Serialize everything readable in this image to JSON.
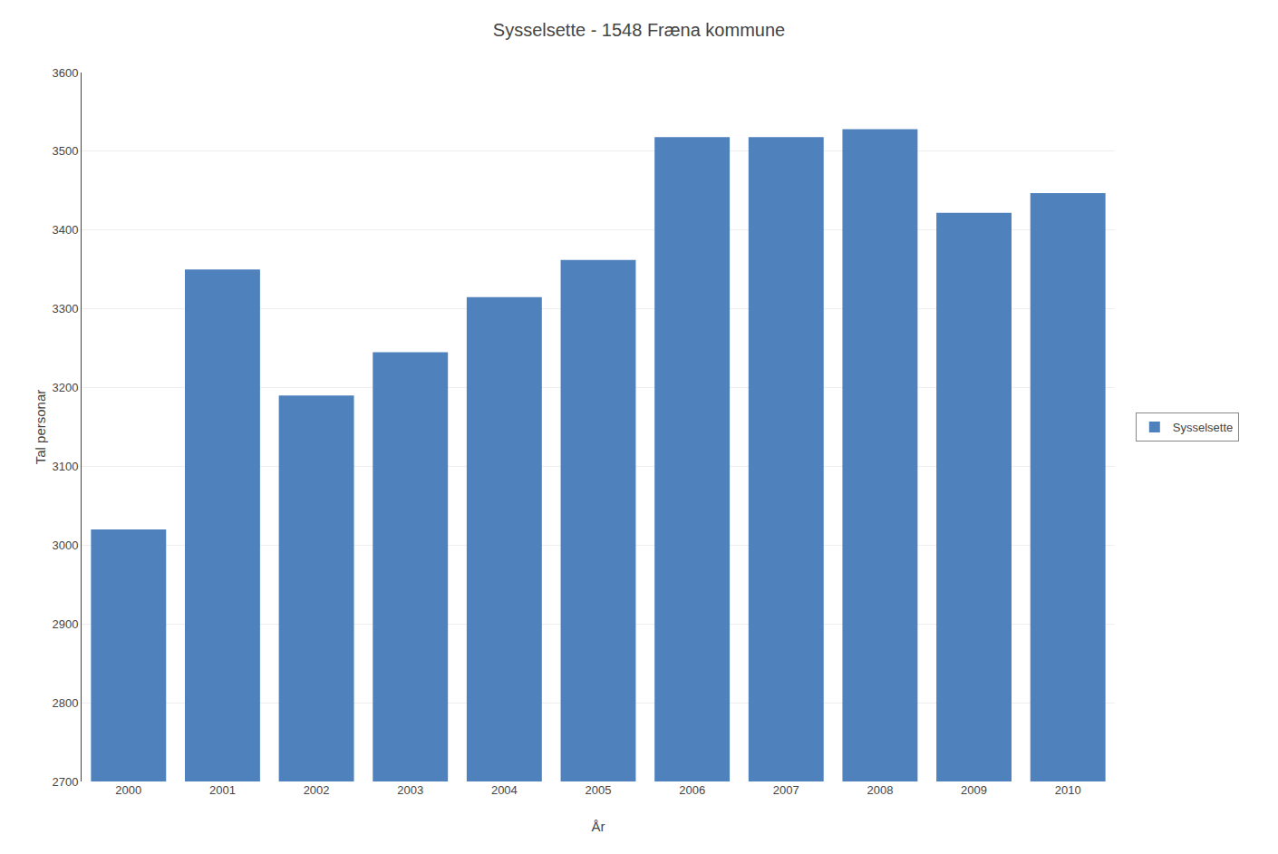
{
  "chart_data": {
    "type": "bar",
    "title": "Sysselsette - 1548 Fræna kommune",
    "xlabel": "År",
    "ylabel": "Tal personar",
    "categories": [
      "2000",
      "2001",
      "2002",
      "2003",
      "2004",
      "2005",
      "2006",
      "2007",
      "2008",
      "2009",
      "2010"
    ],
    "series": [
      {
        "name": "Sysselsette",
        "color": "#4f81bd",
        "values": [
          3020,
          3350,
          3190,
          3245,
          3315,
          3362,
          3518,
          3518,
          3528,
          3422,
          3447
        ]
      }
    ],
    "ylim": [
      2700,
      3600
    ],
    "yticks": [
      2700,
      2800,
      2900,
      3000,
      3100,
      3200,
      3300,
      3400,
      3500,
      3600
    ],
    "grid": true,
    "legend": "right"
  }
}
